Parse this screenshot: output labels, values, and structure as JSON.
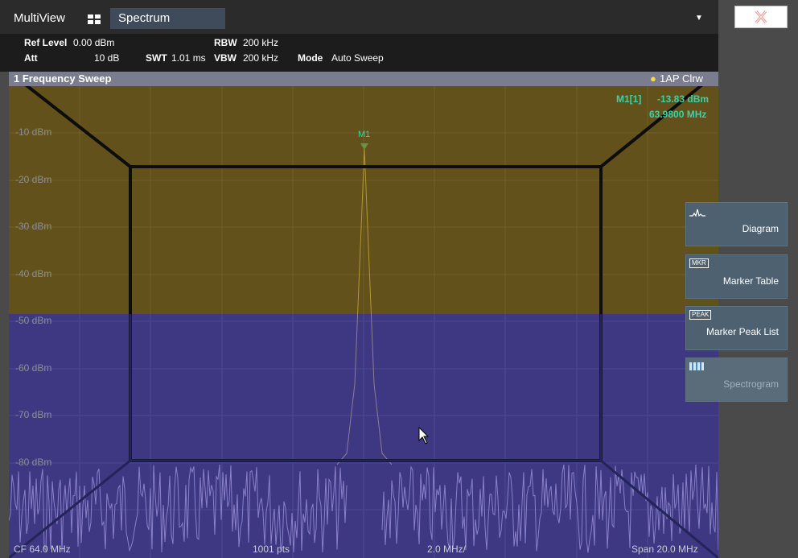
{
  "tabs": {
    "multiview": "MultiView",
    "spectrum": "Spectrum"
  },
  "settings": {
    "ref_level_label": "Ref Level",
    "ref_level_value": "0.00 dBm",
    "att_label": "Att",
    "att_value": "10 dB",
    "swt_label": "SWT",
    "swt_value": "1.01 ms",
    "rbw_label": "RBW",
    "rbw_value": "200 kHz",
    "vbw_label": "VBW",
    "vbw_value": "200 kHz",
    "mode_label": "Mode",
    "mode_value": "Auto Sweep"
  },
  "diagram": {
    "title": "1 Frequency Sweep",
    "trace_label": "1AP Clrw",
    "marker_label": "M1",
    "marker_id": "M1[1]",
    "marker_level": "-13.83 dBm",
    "marker_freq": "63.9800 MHz",
    "y_labels": [
      "-10 dBm",
      "-20 dBm",
      "-30 dBm",
      "-40 dBm",
      "-50 dBm",
      "-60 dBm",
      "-70 dBm",
      "-80 dBm"
    ],
    "footer_center": "CF 64.0 MHz",
    "footer_points": "1001 pts",
    "footer_div": "2.0 MHz/",
    "footer_span": "Span 20.0 MHz"
  },
  "side_buttons": {
    "diagram": "Diagram",
    "marker_table": "Marker Table",
    "marker_peak_list": "Marker Peak List",
    "spectrogram": "Spectrogram",
    "mkr_icon": "MKR",
    "peak_icon": "PEAK"
  },
  "colors": {
    "trace": "#f0e060",
    "marker": "#3bd1a6",
    "overlay_top": "#6b5312",
    "overlay_bottom": "#4a3f8e"
  }
}
